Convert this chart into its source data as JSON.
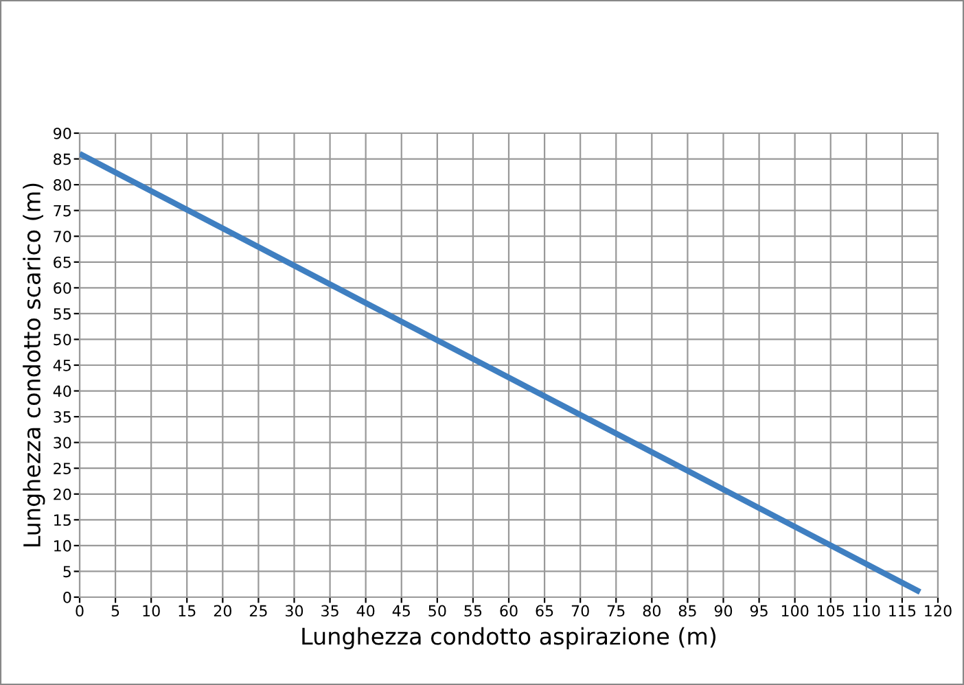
{
  "chart_data": {
    "type": "line",
    "xlabel": "Lunghezza condotto aspirazione (m)",
    "ylabel": "Lunghezza condotto scarico (m)",
    "series": [
      {
        "color": "#3f7fc1",
        "x": [
          0,
          117.5
        ],
        "values": [
          86,
          1
        ]
      }
    ],
    "xlim": [
      0,
      120
    ],
    "xticks": [
      0,
      5,
      10,
      15,
      20,
      25,
      30,
      35,
      40,
      45,
      50,
      55,
      60,
      65,
      70,
      75,
      80,
      85,
      90,
      95,
      100,
      105,
      110,
      115,
      120
    ],
    "ylim": [
      0,
      90
    ],
    "yticks": [
      0,
      5,
      10,
      15,
      20,
      25,
      30,
      35,
      40,
      45,
      50,
      55,
      60,
      65,
      70,
      75,
      80,
      85,
      90
    ],
    "grid": true,
    "legend": false,
    "marker": "none",
    "line_style": "solid"
  }
}
